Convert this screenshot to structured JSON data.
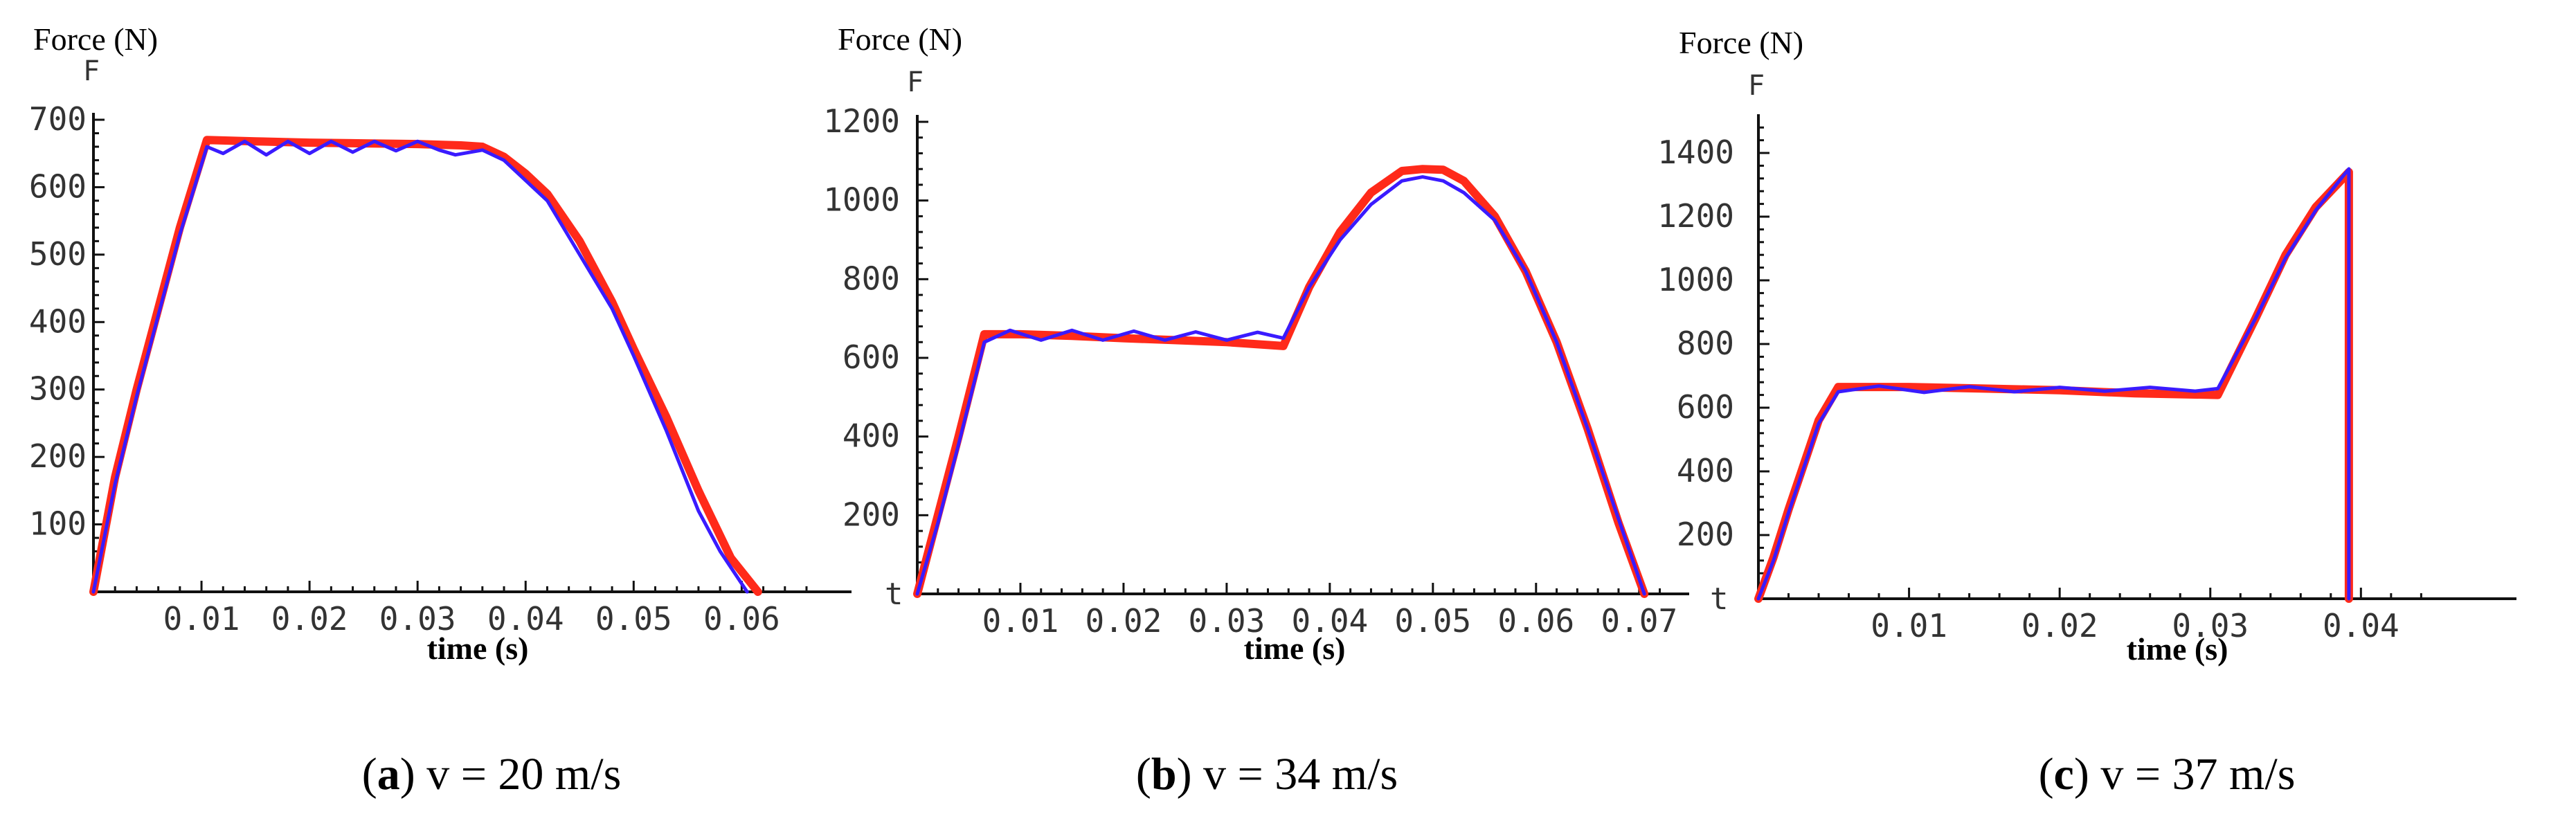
{
  "chart_data": [
    {
      "type": "line",
      "panel_tag": "a",
      "caption_rest": " v = 20 m/s",
      "ylabel": "Force (N)",
      "yaxis_letter": "F",
      "xaxis_letter": "",
      "xlabel": "time (s)",
      "xlim": [
        0,
        0.066
      ],
      "ylim": [
        0,
        700
      ],
      "xticks": [
        0.01,
        0.02,
        0.03,
        0.04,
        0.05,
        0.06
      ],
      "xtick_labels": [
        "0.01",
        "0.02",
        "0.03",
        "0.04",
        "0.05",
        "0.06"
      ],
      "yticks": [
        100,
        200,
        300,
        400,
        500,
        600,
        700
      ],
      "ytick_labels": [
        "100",
        "200",
        "300",
        "400",
        "500",
        "600",
        "700"
      ],
      "series": [
        {
          "color": "#ff2a1a",
          "x": [
            0,
            0.002,
            0.004,
            0.006,
            0.008,
            0.0105,
            0.015,
            0.02,
            0.025,
            0.03,
            0.034,
            0.036,
            0.038,
            0.04,
            0.042,
            0.045,
            0.048,
            0.05,
            0.053,
            0.056,
            0.059,
            0.0615
          ],
          "y": [
            0,
            170,
            300,
            420,
            540,
            670,
            668,
            666,
            665,
            664,
            662,
            660,
            645,
            620,
            590,
            520,
            430,
            360,
            260,
            150,
            50,
            0
          ]
        },
        {
          "color": "#3a1bff",
          "x": [
            0,
            0.002,
            0.004,
            0.006,
            0.008,
            0.0105,
            0.012,
            0.014,
            0.016,
            0.018,
            0.02,
            0.022,
            0.024,
            0.026,
            0.028,
            0.03,
            0.032,
            0.0335,
            0.036,
            0.038,
            0.04,
            0.042,
            0.045,
            0.048,
            0.05,
            0.053,
            0.056,
            0.058,
            0.0605
          ],
          "y": [
            0,
            160,
            290,
            410,
            530,
            660,
            650,
            668,
            648,
            668,
            650,
            668,
            652,
            668,
            654,
            668,
            655,
            648,
            655,
            640,
            610,
            580,
            500,
            420,
            350,
            240,
            120,
            60,
            0
          ]
        }
      ]
    },
    {
      "type": "line",
      "panel_tag": "b",
      "caption_rest": " v = 34 m/s",
      "ylabel": "Force (N)",
      "yaxis_letter": "F",
      "xaxis_letter": "t",
      "xlabel": "time (s)",
      "xlim": [
        0,
        0.0725
      ],
      "ylim": [
        0,
        1200
      ],
      "xticks": [
        0.01,
        0.02,
        0.03,
        0.04,
        0.05,
        0.06,
        0.07
      ],
      "xtick_labels": [
        "0.01",
        "0.02",
        "0.03",
        "0.04",
        "0.05",
        "0.06",
        "0.07"
      ],
      "yticks": [
        200,
        400,
        600,
        800,
        1000,
        1200
      ],
      "ytick_labels": [
        "200",
        "400",
        "600",
        "800",
        "1000",
        "1200"
      ],
      "series": [
        {
          "color": "#ff2a1a",
          "x": [
            0,
            0.002,
            0.004,
            0.0065,
            0.01,
            0.015,
            0.02,
            0.025,
            0.03,
            0.0355,
            0.038,
            0.041,
            0.044,
            0.047,
            0.049,
            0.051,
            0.053,
            0.056,
            0.059,
            0.062,
            0.065,
            0.068,
            0.0705
          ],
          "y": [
            0,
            200,
            400,
            660,
            660,
            656,
            650,
            645,
            640,
            630,
            780,
            920,
            1020,
            1075,
            1080,
            1078,
            1050,
            960,
            820,
            640,
            420,
            180,
            0
          ]
        },
        {
          "color": "#3a1bff",
          "x": [
            0,
            0.002,
            0.004,
            0.0065,
            0.009,
            0.012,
            0.015,
            0.018,
            0.021,
            0.024,
            0.027,
            0.03,
            0.033,
            0.0355,
            0.038,
            0.041,
            0.044,
            0.047,
            0.049,
            0.051,
            0.053,
            0.056,
            0.059,
            0.062,
            0.065,
            0.068,
            0.0705
          ],
          "y": [
            0,
            180,
            380,
            640,
            670,
            645,
            670,
            645,
            668,
            645,
            666,
            645,
            665,
            650,
            780,
            900,
            990,
            1050,
            1060,
            1050,
            1020,
            950,
            820,
            640,
            420,
            190,
            0
          ]
        }
      ]
    },
    {
      "type": "line",
      "panel_tag": "c",
      "caption_rest": " v = 37 m/s",
      "ylabel": "Force (N)",
      "yaxis_letter": "F",
      "xaxis_letter": "t",
      "xlabel": "time (s)",
      "xlim": [
        0,
        0.0455
      ],
      "ylim": [
        0,
        1500
      ],
      "xticks": [
        0.01,
        0.02,
        0.03,
        0.04
      ],
      "xtick_labels": [
        "0.01",
        "0.02",
        "0.03",
        "0.04"
      ],
      "yticks": [
        200,
        400,
        600,
        800,
        1000,
        1200,
        1400
      ],
      "ytick_labels": [
        "200",
        "400",
        "600",
        "800",
        "1000",
        "1200",
        "1400"
      ],
      "series": [
        {
          "color": "#ff2a1a",
          "x": [
            0,
            0.001,
            0.002,
            0.003,
            0.004,
            0.0053,
            0.01,
            0.015,
            0.02,
            0.025,
            0.0305,
            0.033,
            0.035,
            0.037,
            0.0392,
            0.0392
          ],
          "y": [
            0,
            130,
            280,
            420,
            560,
            665,
            665,
            660,
            655,
            645,
            640,
            880,
            1080,
            1230,
            1340,
            0
          ]
        },
        {
          "color": "#3a1bff",
          "x": [
            0,
            0.001,
            0.002,
            0.003,
            0.004,
            0.0053,
            0.008,
            0.011,
            0.014,
            0.017,
            0.02,
            0.023,
            0.026,
            0.029,
            0.0305,
            0.033,
            0.035,
            0.037,
            0.0392,
            0.0392
          ],
          "y": [
            0,
            120,
            270,
            410,
            550,
            650,
            668,
            648,
            666,
            650,
            664,
            652,
            664,
            652,
            660,
            880,
            1070,
            1220,
            1350,
            0
          ]
        }
      ]
    }
  ]
}
